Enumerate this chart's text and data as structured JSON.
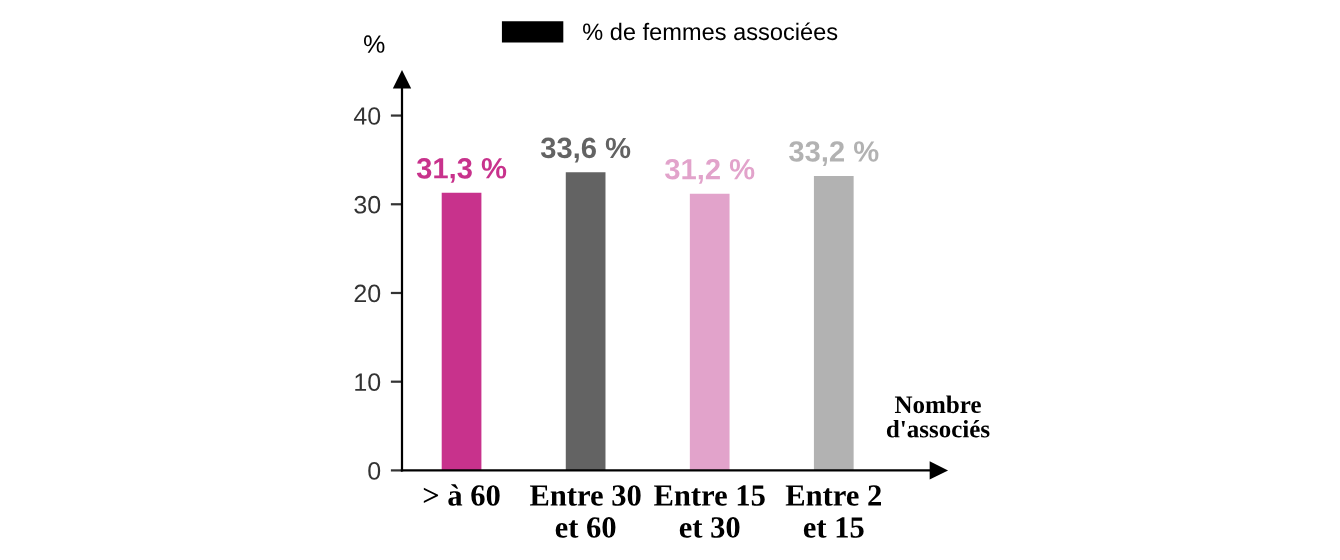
{
  "chart_data": {
    "type": "bar",
    "ylabel": "%",
    "xlabel": "Nombre\nd'associés",
    "categories": [
      "> à 60",
      "Entre 30\net 60",
      "Entre 15\net 30",
      "Entre 2\net 15"
    ],
    "series": [
      {
        "name": "% de femmes associées",
        "color": "#000000",
        "colors": [
          "#c8328c",
          "#636363",
          "#e2a3cb",
          "#b2b2b2"
        ],
        "values": [
          31.3,
          33.6,
          31.2,
          33.2
        ],
        "value_labels": [
          "31,3 %",
          "33,6 %",
          "31,2 %",
          "33,2 %"
        ]
      }
    ],
    "ylim": [
      0,
      44
    ],
    "yticks": [
      0,
      10,
      20,
      30,
      40
    ],
    "grid": false,
    "legend": "top"
  }
}
